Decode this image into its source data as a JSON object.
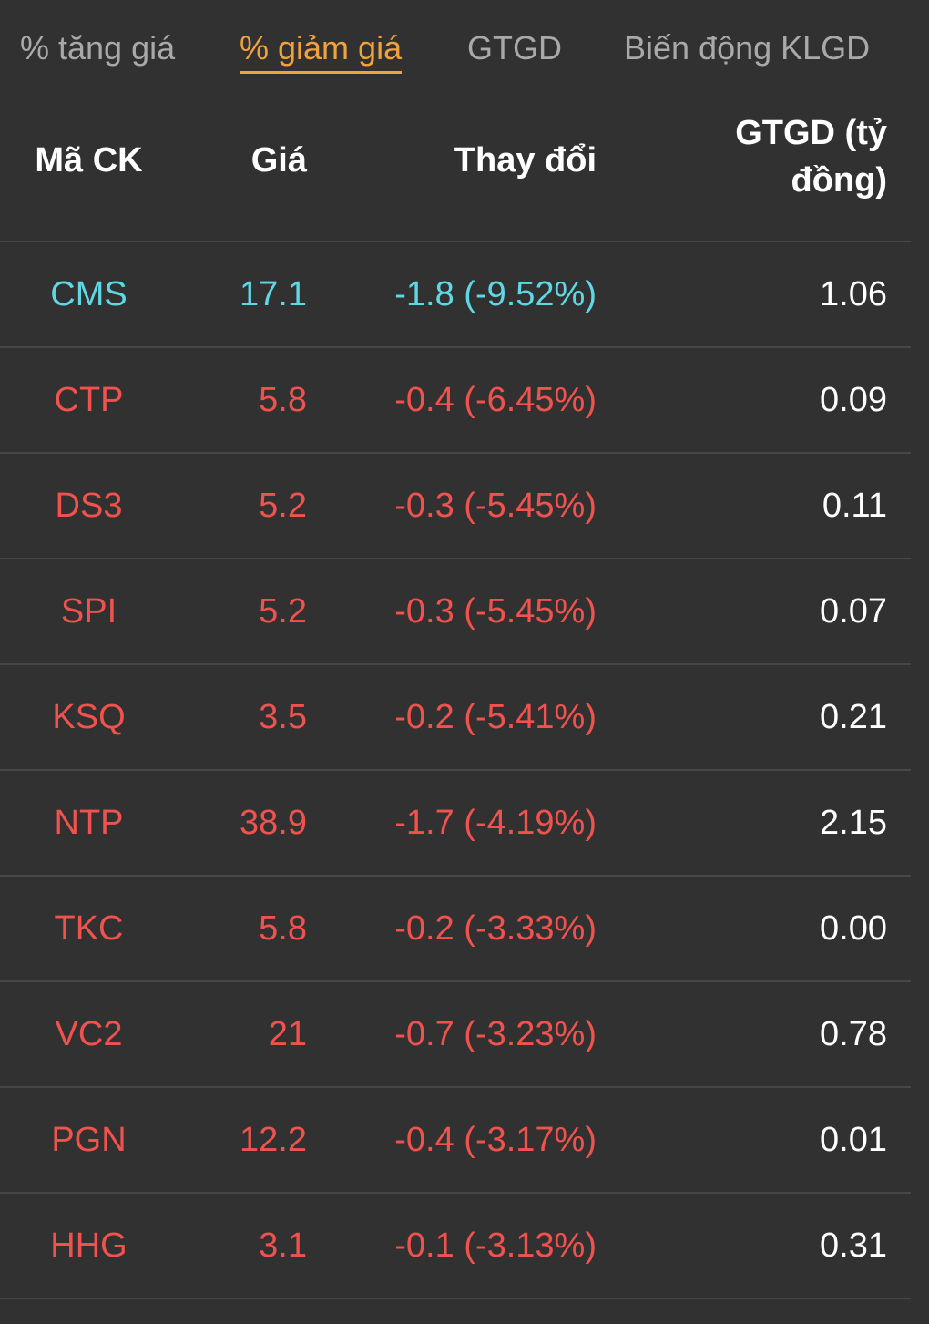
{
  "tabs": [
    {
      "label": "% tăng giá",
      "active": false
    },
    {
      "label": "% giảm giá",
      "active": true
    },
    {
      "label": "GTGD",
      "active": false
    },
    {
      "label": "Biến động KLGD",
      "active": false
    }
  ],
  "table": {
    "headers": {
      "code": "Mã CK",
      "price": "Giá",
      "change": "Thay đổi",
      "value_line1": "GTGD (tỷ",
      "value_line2": "đồng)"
    },
    "rows": [
      {
        "code": "CMS",
        "price": "17.1",
        "change": "-1.8 (-9.52%)",
        "value": "1.06",
        "status": "floor"
      },
      {
        "code": "CTP",
        "price": "5.8",
        "change": "-0.4 (-6.45%)",
        "value": "0.09",
        "status": "down"
      },
      {
        "code": "DS3",
        "price": "5.2",
        "change": "-0.3 (-5.45%)",
        "value": "0.11",
        "status": "down"
      },
      {
        "code": "SPI",
        "price": "5.2",
        "change": "-0.3 (-5.45%)",
        "value": "0.07",
        "status": "down"
      },
      {
        "code": "KSQ",
        "price": "3.5",
        "change": "-0.2 (-5.41%)",
        "value": "0.21",
        "status": "down"
      },
      {
        "code": "NTP",
        "price": "38.9",
        "change": "-1.7 (-4.19%)",
        "value": "2.15",
        "status": "down"
      },
      {
        "code": "TKC",
        "price": "5.8",
        "change": "-0.2 (-3.33%)",
        "value": "0.00",
        "status": "down"
      },
      {
        "code": "VC2",
        "price": "21",
        "change": "-0.7 (-3.23%)",
        "value": "0.78",
        "status": "down"
      },
      {
        "code": "PGN",
        "price": "12.2",
        "change": "-0.4 (-3.17%)",
        "value": "0.01",
        "status": "down"
      },
      {
        "code": "HHG",
        "price": "3.1",
        "change": "-0.1 (-3.13%)",
        "value": "0.31",
        "status": "down"
      }
    ]
  },
  "colors": {
    "background": "#313131",
    "active_tab": "#f2a23c",
    "inactive_tab": "#a9a9a9",
    "down": "#f0524d",
    "floor": "#5fd8e6",
    "value": "#ffffff"
  }
}
